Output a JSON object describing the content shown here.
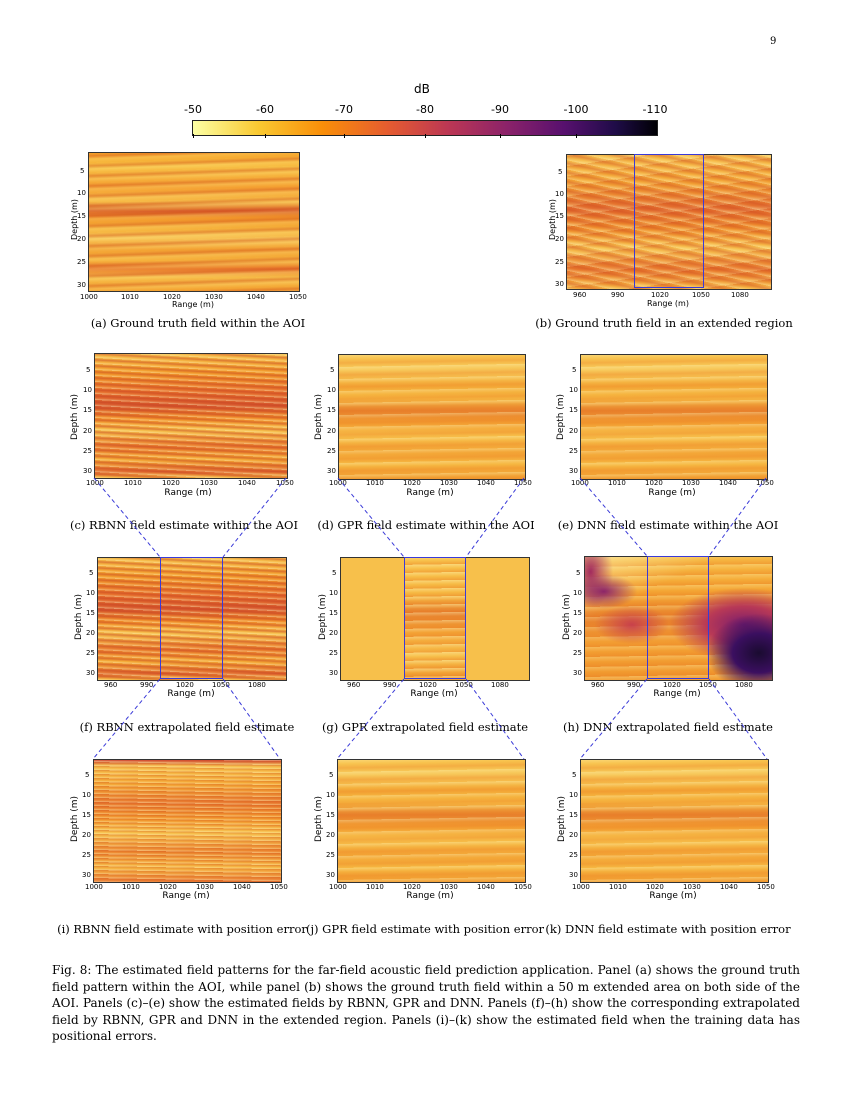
{
  "page_number": "9",
  "colorbar": {
    "title": "dB",
    "ticks": [
      "-50",
      "-60",
      "-70",
      "-80",
      "-90",
      "-100",
      "-110"
    ]
  },
  "axes": {
    "depth_label": "Depth (m)",
    "range_label": "Range (m)",
    "depth_ticks": [
      "5",
      "10",
      "15",
      "20",
      "25",
      "30"
    ],
    "aoi_range_ticks": [
      "1000",
      "1010",
      "1020",
      "1030",
      "1040",
      "1050"
    ],
    "ext_range_ticks": [
      "960",
      "990",
      "1020",
      "1050",
      "1080"
    ],
    "ext_range_ticks_b": [
      "960",
      "990",
      "1020",
      "1050",
      "1080"
    ]
  },
  "panels": {
    "a": "(a) Ground truth field within the AOI",
    "b": "(b) Ground truth field in an extended region",
    "c": "(c) RBNN field estimate within the AOI",
    "d": "(d) GPR field estimate within the AOI",
    "e": "(e) DNN field estimate within the AOI",
    "f": "(f) RBNN extrapolated field estimate",
    "g": "(g) GPR extrapolated field estimate",
    "h": "(h) DNN extrapolated field estimate",
    "i": "(i) RBNN field estimate with position error",
    "j": "(j) GPR field estimate with position error",
    "k": "(k) DNN field estimate with position error"
  },
  "figure_caption": "Fig. 8: The estimated field patterns for the far-field acoustic field prediction application. Panel (a) shows the ground truth field pattern within the AOI, while panel (b) shows the ground truth field within a 50 m extended area on both side of the AOI. Panels (c)–(e) show the estimated fields by RBNN, GPR and DNN. Panels (f)–(h) show the corresponding extrapolated field by RBNN, GPR and DNN in the extended region. Panels (i)–(k) show the estimated field when the training data has positional errors.",
  "colors": {
    "aoi_box": "#3a3ad8",
    "dash_lines": "#3a3ad8"
  }
}
